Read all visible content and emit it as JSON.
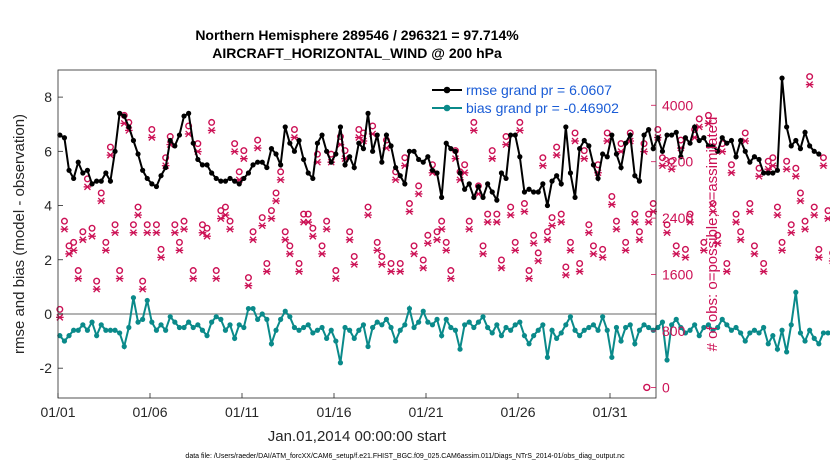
{
  "chart_data": {
    "type": "line",
    "title": [
      "Northern Hemisphere 289546 / 296321 = 97.714%",
      "AIRCRAFT_HORIZONTAL_WIND @ 200 hPa"
    ],
    "xlabel": "Jan.01,2014 00:00:00 start",
    "ylabel_left": "rmse and bias (model - observation)",
    "ylabel_right": "# of obs: o=possible; ×=assimilated",
    "xlim": [
      0,
      32.5
    ],
    "ylim_left": [
      -3.1,
      9.0
    ],
    "ylim_right": [
      -150,
      4500
    ],
    "x_ticks": [
      {
        "x": 0,
        "label": "01/01"
      },
      {
        "x": 5,
        "label": "01/06"
      },
      {
        "x": 10,
        "label": "01/11"
      },
      {
        "x": 15,
        "label": "01/16"
      },
      {
        "x": 20,
        "label": "01/21"
      },
      {
        "x": 25,
        "label": "01/26"
      },
      {
        "x": 30,
        "label": "01/31"
      }
    ],
    "y_ticks_left": [
      -2,
      0,
      2,
      4,
      6,
      8
    ],
    "y_ticks_right": [
      0,
      800,
      1600,
      2400,
      3200,
      4000
    ],
    "colors": {
      "rmse": "#000000",
      "bias": "#0a8a8a",
      "obs": "#cc1155",
      "zero": "#b3b3b3",
      "legend_text": "#1a5cd6"
    },
    "series": [
      {
        "name": "rmse grand pr =  6.0607",
        "axis": "left",
        "values": [
          6.6,
          6.5,
          5.3,
          5.0,
          5.6,
          5.2,
          5.3,
          4.8,
          4.9,
          4.9,
          5.2,
          4.9,
          6.0,
          7.4,
          7.3,
          6.9,
          6.4,
          5.9,
          5.3,
          5.0,
          4.8,
          4.7,
          5.1,
          5.4,
          6.4,
          6.2,
          6.6,
          7.3,
          7.4,
          6.3,
          5.7,
          5.5,
          5.5,
          5.2,
          5.0,
          4.9,
          4.9,
          5.0,
          4.9,
          4.8,
          5.0,
          5.2,
          5.5,
          5.6,
          5.6,
          5.4,
          6.1,
          5.9,
          5.5,
          6.9,
          6.3,
          6.0,
          6.4,
          5.7,
          5.2,
          5.0,
          6.3,
          6.6,
          6.0,
          5.6,
          5.9,
          6.9,
          5.5,
          5.8,
          5.4,
          6.3,
          6.1,
          7.4,
          6.0,
          6.6,
          5.6,
          6.6,
          6.2,
          5.4,
          5.1,
          4.8,
          6.0,
          6.0,
          5.7,
          5.6,
          5.8,
          5.3,
          5.2,
          4.3,
          6.3,
          6.1,
          6.0,
          5.2,
          4.6,
          4.8,
          4.3,
          4.7,
          4.3,
          4.8,
          4.5,
          4.2,
          5.2,
          5.0,
          6.6,
          6.6,
          5.8,
          4.5,
          4.6,
          4.5,
          4.5,
          4.8,
          4.0,
          4.9,
          5.1,
          4.8,
          6.9,
          5.2,
          4.3,
          6.1,
          6.4,
          6.2,
          5.5,
          5.0,
          5.9,
          5.8,
          6.6,
          5.9,
          5.4,
          6.3,
          6.6,
          5.1,
          4.9,
          6.6,
          6.8,
          6.1,
          6.5,
          6.0,
          6.6,
          6.6,
          6.7,
          5.8,
          6.5,
          6.3,
          6.9,
          6.4,
          6.5,
          6.2,
          6.2,
          6.0,
          6.5,
          6.3,
          6.4,
          5.8,
          6.4,
          6.0,
          5.6,
          5.8,
          5.7,
          5.2,
          5.2,
          5.2,
          5.3,
          8.7,
          6.9,
          6.2,
          6.4,
          6.1,
          6.7,
          6.2,
          6.0,
          5.9
        ]
      },
      {
        "name": "bias grand pr = -0.46902",
        "axis": "left",
        "values": [
          -0.8,
          -1.0,
          -0.8,
          -0.6,
          -0.6,
          -0.4,
          -0.6,
          -0.3,
          -0.8,
          -0.4,
          -0.6,
          -0.6,
          -0.6,
          -0.7,
          -1.2,
          -0.5,
          0.6,
          -0.3,
          -0.2,
          0.5,
          -0.3,
          -0.6,
          -0.4,
          -0.6,
          -0.1,
          -0.3,
          -0.5,
          -0.5,
          -0.3,
          -0.5,
          -0.4,
          -0.6,
          -0.8,
          -0.3,
          -0.1,
          -0.2,
          -0.6,
          -0.4,
          -0.9,
          -0.4,
          -0.5,
          0.2,
          0.2,
          -0.2,
          0.0,
          -0.2,
          -1.1,
          -0.6,
          -0.2,
          0.1,
          -0.1,
          -0.5,
          -0.6,
          -0.5,
          -0.4,
          -0.7,
          -0.6,
          -0.5,
          -0.9,
          -0.6,
          -1.0,
          -1.8,
          -0.5,
          -0.6,
          -0.9,
          -0.6,
          -0.4,
          -1.2,
          -0.5,
          -0.3,
          -0.4,
          -0.2,
          -0.5,
          -1.0,
          -0.6,
          -0.4,
          0.2,
          -0.5,
          -0.3,
          0.1,
          -0.3,
          -0.4,
          -0.2,
          -0.8,
          -0.2,
          -0.5,
          -0.6,
          -1.3,
          -0.4,
          -0.3,
          -0.5,
          -0.3,
          -0.1,
          -0.5,
          -0.7,
          -0.4,
          -0.8,
          -0.5,
          -0.6,
          -0.4,
          -0.3,
          -0.8,
          -1.1,
          -0.8,
          -0.6,
          -0.4,
          -1.6,
          -0.6,
          -0.9,
          -0.7,
          -0.4,
          -0.1,
          -0.6,
          -0.8,
          -0.6,
          -0.5,
          -0.4,
          -0.6,
          -0.1,
          -0.6,
          -1.6,
          -0.5,
          -1.0,
          -0.5,
          -0.4,
          -1.1,
          -0.6,
          -0.4,
          -0.5,
          -0.6,
          -0.5,
          -0.3,
          -1.7,
          -0.4,
          -0.2,
          -0.5,
          -0.7,
          -0.6,
          -0.4,
          -0.8,
          -0.5,
          -0.4,
          -0.6,
          -0.5,
          -0.2,
          -0.4,
          -0.6,
          -0.5,
          -0.7,
          -1.0,
          -0.7,
          -0.6,
          -0.7,
          -0.5,
          -1.1,
          -0.8,
          -1.3,
          -0.6,
          -1.4,
          -0.4,
          0.8,
          -0.7,
          -1.0,
          -0.6,
          -0.9,
          -1.1,
          -0.7,
          -0.7
        ]
      },
      {
        "name": "possible",
        "axis": "right",
        "marker": "o",
        "values": [
          1050,
          2300,
          1950,
          2000,
          1600,
          2150,
          2900,
          2200,
          1450,
          2700,
          2000,
          3350,
          2250,
          1600,
          3800,
          3700,
          2250,
          2500,
          1450,
          2250,
          3600,
          2250,
          1900,
          3200,
          3500,
          2250,
          2000,
          2300,
          3650,
          1600,
          3400,
          2250,
          2200,
          3700,
          1600,
          2450,
          2500,
          2300,
          3400,
          3000,
          3300,
          1500,
          2150,
          3450,
          2350,
          1700,
          2450,
          2700,
          3000,
          2150,
          1950,
          3600,
          1700,
          2400,
          2400,
          2200,
          3250,
          1950,
          2300,
          3250,
          1600,
          3500,
          3300,
          2150,
          1800,
          3600,
          3550,
          2500,
          3650,
          2000,
          1800,
          3450,
          1700,
          3000,
          1700,
          3200,
          2550,
          1950,
          2800,
          1750,
          2100,
          3100,
          2150,
          2300,
          2000,
          1600,
          3300,
          3000,
          3100,
          2300,
          3700,
          2800,
          1950,
          2400,
          3300,
          2400,
          1750,
          3500,
          2500,
          2000,
          3700,
          2550,
          1600,
          2100,
          1850,
          3200,
          2150,
          2350,
          3350,
          2400,
          1650,
          2000,
          3550,
          1700,
          3300,
          2250,
          1950,
          3100,
          1900,
          3550,
          2650,
          2300,
          3400,
          2000,
          3550,
          2400,
          2150,
          3400,
          2400,
          2550,
          3600,
          3200,
          2250,
          3150,
          1950,
          3450,
          1900,
          2400,
          3600,
          3750,
          2000,
          3800,
          2550,
          2100,
          3400,
          1700,
          3100,
          2400,
          2150,
          3550,
          2550,
          1950,
          3050,
          1700,
          3150,
          3200,
          2500,
          2000,
          3150,
          2250,
          3050,
          2700,
          2300,
          4350,
          2500,
          1900,
          3200,
          2450,
          1850,
          3200,
          2300,
          2800
        ]
      },
      {
        "name": "assimilated",
        "axis": "right",
        "marker": "x",
        "values": [
          1050,
          2300,
          1950,
          2000,
          1600,
          2150,
          2900,
          2200,
          1450,
          2700,
          2000,
          3350,
          2250,
          1600,
          3800,
          3700,
          2250,
          2500,
          1450,
          2250,
          3600,
          2250,
          1900,
          3200,
          3500,
          2250,
          2000,
          2300,
          3650,
          1600,
          3400,
          2250,
          2200,
          3700,
          1600,
          2450,
          2500,
          2300,
          3400,
          3000,
          3300,
          1500,
          2150,
          3450,
          2350,
          1700,
          2450,
          2700,
          3000,
          2150,
          1950,
          3600,
          1700,
          2400,
          2400,
          2200,
          3250,
          1950,
          2300,
          3250,
          1600,
          3500,
          3300,
          2150,
          1800,
          3600,
          3550,
          2500,
          3650,
          2000,
          1800,
          3450,
          1700,
          3000,
          1700,
          3200,
          2550,
          1950,
          2800,
          1750,
          2100,
          3100,
          2150,
          2300,
          2000,
          1600,
          3300,
          3000,
          3100,
          2300,
          3700,
          2800,
          1950,
          2400,
          3300,
          2400,
          1750,
          3500,
          2500,
          2000,
          3700,
          2550,
          1600,
          2100,
          1850,
          3200,
          2150,
          2350,
          3350,
          2400,
          1650,
          2000,
          3550,
          1700,
          3300,
          2250,
          1950,
          3100,
          1900,
          3550,
          2650,
          2300,
          3400,
          2000,
          3550,
          2400,
          2150,
          3400,
          2400,
          2550,
          3600,
          3200,
          2250,
          3150,
          1950,
          3450,
          1900,
          2400,
          3600,
          3750,
          2000,
          3800,
          2550,
          2100,
          3400,
          1700,
          3100,
          2400,
          2150,
          3550,
          2550,
          1950,
          3050,
          1700,
          3150,
          3200,
          2500,
          2000,
          3150,
          2250,
          3050,
          2700,
          2300,
          4350,
          2500,
          1900,
          3200,
          2450,
          1850,
          3200,
          2300,
          2800
        ]
      }
    ],
    "footer": "data file: /Users/raeder/DAI/ATM_forcXX/CAM6_setup/f.e21.FHIST_BGC.f09_025.CAM6assim.011/Diags_NTrS_2014-01/obs_diag_output.nc"
  }
}
